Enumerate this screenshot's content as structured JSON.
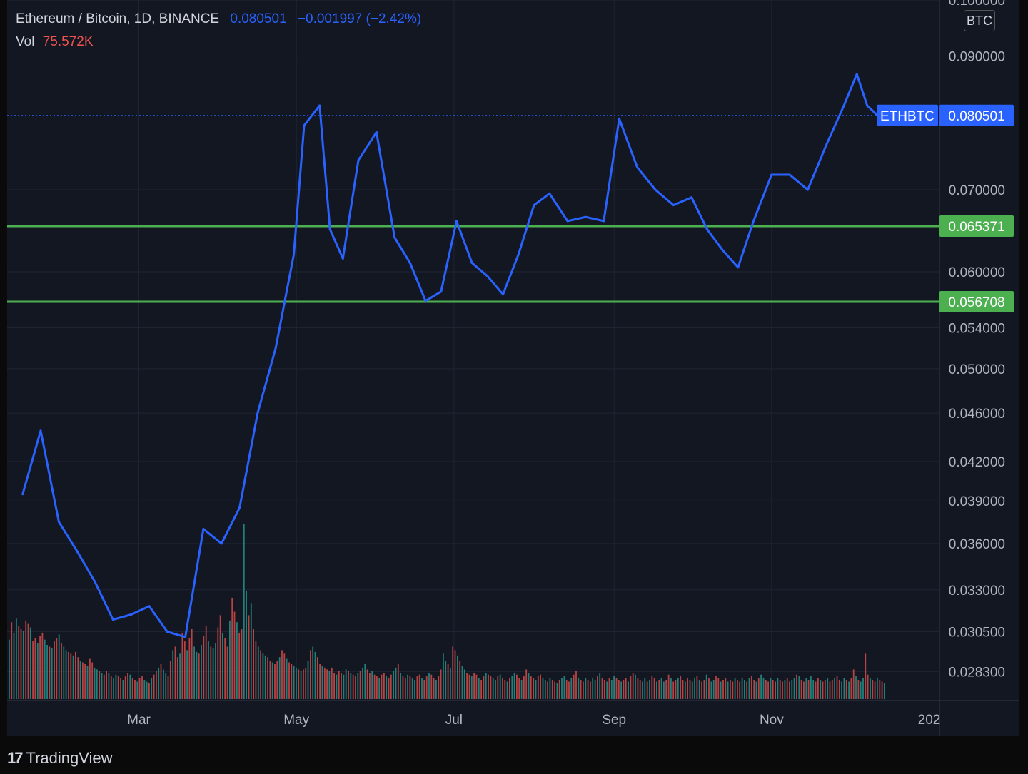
{
  "header": {
    "symbol": "Ethereum / Bitcoin, 1D, BINANCE",
    "price": "0.080501",
    "change": "−0.001997 (−2.42%)",
    "vol_label": "Vol",
    "vol_value": "75.572K",
    "currency": "BTC"
  },
  "logo": {
    "mark": "17",
    "text": "TradingView"
  },
  "colors": {
    "background": "#131722",
    "line": "#2962ff",
    "support": "#4caf50",
    "vol_up": "#26a69a",
    "vol_down": "#ef5350",
    "grid": "#1f2433"
  },
  "chart_data": {
    "type": "line",
    "title": "Ethereum / Bitcoin, 1D, BINANCE",
    "y_scale": "log",
    "ylim": [
      0.0268,
      0.1
    ],
    "x_tick_labels": [
      "Mar",
      "May",
      "Jul",
      "Sep",
      "Nov",
      "202"
    ],
    "y_tick_labels": [
      "0.100000",
      "0.090000",
      "0.070000",
      "0.060000",
      "0.054000",
      "0.050000",
      "0.046000",
      "0.042000",
      "0.039000",
      "0.036000",
      "0.033000",
      "0.030500",
      "0.028300"
    ],
    "series": [
      {
        "name": "ETHBTC",
        "x": [
          "2021-01-15",
          "2021-01-22",
          "2021-01-29",
          "2021-02-05",
          "2021-02-12",
          "2021-02-19",
          "2021-02-26",
          "2021-03-05",
          "2021-03-12",
          "2021-03-19",
          "2021-03-26",
          "2021-04-02",
          "2021-04-09",
          "2021-04-16",
          "2021-04-23",
          "2021-04-30",
          "2021-05-04",
          "2021-05-10",
          "2021-05-14",
          "2021-05-19",
          "2021-05-25",
          "2021-06-01",
          "2021-06-08",
          "2021-06-14",
          "2021-06-20",
          "2021-06-26",
          "2021-07-02",
          "2021-07-08",
          "2021-07-14",
          "2021-07-20",
          "2021-07-26",
          "2021-08-01",
          "2021-08-07",
          "2021-08-14",
          "2021-08-21",
          "2021-08-28",
          "2021-09-03",
          "2021-09-10",
          "2021-09-17",
          "2021-09-24",
          "2021-10-01",
          "2021-10-07",
          "2021-10-13",
          "2021-10-19",
          "2021-10-25",
          "2021-11-01",
          "2021-11-08",
          "2021-11-15",
          "2021-11-22",
          "2021-11-29",
          "2021-12-04",
          "2021-12-08",
          "2021-12-12"
        ],
        "values": [
          0.0395,
          0.0445,
          0.0375,
          0.0355,
          0.0335,
          0.0312,
          0.0315,
          0.032,
          0.0305,
          0.0302,
          0.037,
          0.036,
          0.0385,
          0.046,
          0.052,
          0.062,
          0.079,
          0.082,
          0.065,
          0.0615,
          0.074,
          0.078,
          0.064,
          0.061,
          0.0568,
          0.0578,
          0.066,
          0.061,
          0.0595,
          0.0575,
          0.062,
          0.068,
          0.0695,
          0.066,
          0.0665,
          0.066,
          0.08,
          0.073,
          0.07,
          0.068,
          0.069,
          0.065,
          0.0625,
          0.0605,
          0.066,
          0.072,
          0.072,
          0.07,
          0.076,
          0.082,
          0.087,
          0.082,
          0.0805
        ]
      }
    ],
    "horizontal_lines": [
      {
        "value": 0.065371,
        "label": "0.065371"
      },
      {
        "value": 0.056708,
        "label": "0.056708"
      }
    ],
    "last_price": {
      "value": 0.080501,
      "label": "0.080501",
      "symbol": "ETHBTC"
    },
    "volume": {
      "peak": 0.25,
      "values": [
        0.34,
        0.44,
        0.38,
        0.46,
        0.42,
        0.4,
        0.39,
        0.45,
        0.43,
        0.41,
        0.33,
        0.35,
        0.32,
        0.36,
        0.38,
        0.34,
        0.31,
        0.3,
        0.29,
        0.33,
        0.35,
        0.37,
        0.32,
        0.3,
        0.28,
        0.27,
        0.26,
        0.25,
        0.27,
        0.24,
        0.22,
        0.21,
        0.2,
        0.19,
        0.23,
        0.21,
        0.18,
        0.17,
        0.16,
        0.15,
        0.14,
        0.16,
        0.15,
        0.13,
        0.12,
        0.14,
        0.13,
        0.12,
        0.11,
        0.13,
        0.15,
        0.14,
        0.12,
        0.11,
        0.1,
        0.12,
        0.13,
        0.11,
        0.1,
        0.09,
        0.12,
        0.14,
        0.16,
        0.18,
        0.2,
        0.17,
        0.15,
        0.13,
        0.22,
        0.28,
        0.3,
        0.24,
        0.26,
        0.38,
        0.33,
        0.28,
        0.35,
        0.4,
        0.3,
        0.27,
        0.26,
        0.31,
        0.36,
        0.42,
        0.33,
        0.3,
        0.29,
        0.32,
        0.41,
        0.48,
        0.38,
        0.35,
        0.3,
        0.45,
        0.58,
        0.5,
        0.44,
        0.38,
        0.4,
        1.0,
        0.62,
        0.48,
        0.55,
        0.4,
        0.33,
        0.3,
        0.28,
        0.26,
        0.25,
        0.24,
        0.22,
        0.21,
        0.2,
        0.22,
        0.24,
        0.28,
        0.26,
        0.23,
        0.21,
        0.2,
        0.19,
        0.18,
        0.17,
        0.16,
        0.17,
        0.18,
        0.22,
        0.28,
        0.3,
        0.27,
        0.24,
        0.2,
        0.19,
        0.18,
        0.17,
        0.16,
        0.18,
        0.15,
        0.14,
        0.16,
        0.15,
        0.14,
        0.17,
        0.16,
        0.15,
        0.14,
        0.13,
        0.15,
        0.16,
        0.18,
        0.2,
        0.17,
        0.15,
        0.16,
        0.14,
        0.13,
        0.12,
        0.14,
        0.15,
        0.13,
        0.12,
        0.14,
        0.16,
        0.18,
        0.2,
        0.15,
        0.13,
        0.12,
        0.14,
        0.13,
        0.12,
        0.11,
        0.13,
        0.14,
        0.12,
        0.11,
        0.13,
        0.15,
        0.14,
        0.12,
        0.11,
        0.13,
        0.17,
        0.26,
        0.22,
        0.2,
        0.18,
        0.3,
        0.28,
        0.25,
        0.22,
        0.19,
        0.17,
        0.15,
        0.14,
        0.13,
        0.15,
        0.14,
        0.12,
        0.11,
        0.13,
        0.15,
        0.14,
        0.13,
        0.12,
        0.11,
        0.13,
        0.14,
        0.12,
        0.11,
        0.1,
        0.12,
        0.13,
        0.15,
        0.14,
        0.12,
        0.11,
        0.13,
        0.17,
        0.15,
        0.13,
        0.12,
        0.11,
        0.13,
        0.14,
        0.12,
        0.11,
        0.1,
        0.12,
        0.11,
        0.1,
        0.09,
        0.11,
        0.12,
        0.13,
        0.11,
        0.1,
        0.12,
        0.14,
        0.16,
        0.12,
        0.11,
        0.1,
        0.12,
        0.11,
        0.1,
        0.12,
        0.11,
        0.13,
        0.15,
        0.12,
        0.11,
        0.1,
        0.12,
        0.11,
        0.13,
        0.12,
        0.11,
        0.1,
        0.11,
        0.12,
        0.1,
        0.13,
        0.15,
        0.14,
        0.12,
        0.11,
        0.1,
        0.12,
        0.1,
        0.11,
        0.13,
        0.12,
        0.1,
        0.11,
        0.12,
        0.1,
        0.11,
        0.14,
        0.12,
        0.1,
        0.11,
        0.12,
        0.13,
        0.11,
        0.1,
        0.12,
        0.11,
        0.1,
        0.12,
        0.13,
        0.11,
        0.1,
        0.11,
        0.14,
        0.12,
        0.1,
        0.11,
        0.13,
        0.12,
        0.1,
        0.11,
        0.12,
        0.1,
        0.11,
        0.1,
        0.12,
        0.11,
        0.1,
        0.12,
        0.11,
        0.1,
        0.12,
        0.13,
        0.11,
        0.1,
        0.12,
        0.14,
        0.12,
        0.11,
        0.1,
        0.12,
        0.11,
        0.1,
        0.12,
        0.11,
        0.1,
        0.11,
        0.12,
        0.1,
        0.11,
        0.12,
        0.14,
        0.13,
        0.11,
        0.1,
        0.12,
        0.11,
        0.13,
        0.11,
        0.1,
        0.12,
        0.11,
        0.1,
        0.11,
        0.12,
        0.1,
        0.11,
        0.12,
        0.13,
        0.11,
        0.1,
        0.12,
        0.11,
        0.1,
        0.12,
        0.17,
        0.13,
        0.11,
        0.1,
        0.12,
        0.26,
        0.14,
        0.12,
        0.11,
        0.1,
        0.12,
        0.11,
        0.1,
        0.09
      ]
    }
  }
}
